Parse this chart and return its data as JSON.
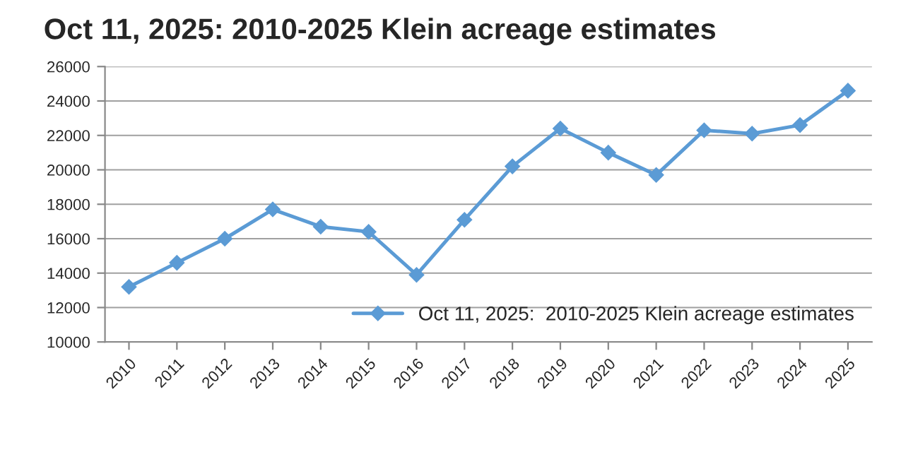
{
  "chart_data": {
    "type": "line",
    "title": "Oct 11, 2025: 2010-2025 Klein acreage estimates",
    "categories": [
      "2010",
      "2011",
      "2012",
      "2013",
      "2014",
      "2015",
      "2016",
      "2017",
      "2018",
      "2019",
      "2020",
      "2021",
      "2022",
      "2023",
      "2024",
      "2025"
    ],
    "series": [
      {
        "name": "Oct 11, 2025:  2010-2025 Klein acreage estimates",
        "color": "#5b9bd5",
        "values": [
          13200,
          14600,
          16000,
          17700,
          16700,
          16400,
          13900,
          17100,
          20200,
          22400,
          21000,
          19700,
          22300,
          22100,
          22600,
          24600
        ]
      }
    ],
    "ylim": [
      10000,
      26000
    ],
    "yticks": [
      10000,
      12000,
      14000,
      16000,
      18000,
      20000,
      22000,
      24000,
      26000
    ],
    "grid": "y",
    "legend": "right",
    "marker": "diamond",
    "line_style": "solid"
  }
}
